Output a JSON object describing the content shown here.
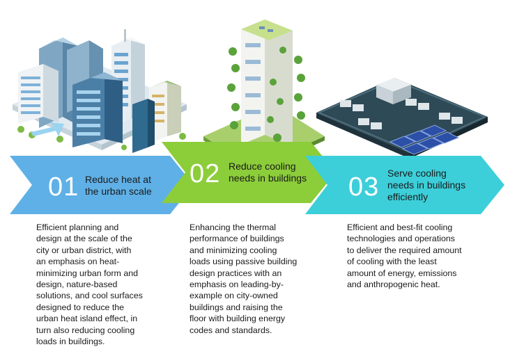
{
  "steps": [
    {
      "number": "01",
      "title": "Reduce heat at\nthe urban scale",
      "description": "Efficient planning and\ndesign at the scale of the\ncity or urban district, with\nan emphasis on heat-\nminimizing urban form and\ndesign, nature-based\nsolutions, and cool surfaces\ndesigned to reduce the\nurban heat island effect, in\nturn also reducing cooling\nloads in buildings.",
      "color": "#5fb0e6"
    },
    {
      "number": "02",
      "title": "Reduce cooling\nneeds in buildings",
      "description": "Enhancing the thermal\nperformance of buildings\nand minimizing cooling\nloads using passive building\ndesign practices with an\nemphasis on leading-by-\nexample on city-owned\nbuildings and raising the\nfloor with building energy\ncodes and standards.",
      "color": "#8ccd3a"
    },
    {
      "number": "03",
      "title": "Serve cooling\nneeds in buildings\nefficiently",
      "description": "Efficient and best-fit cooling\ntechnologies and operations\nto deliver the required amount\nof cooling with the least\namount of energy, emissions\nand anthropogenic heat.",
      "color": "#3ccfd9"
    }
  ]
}
